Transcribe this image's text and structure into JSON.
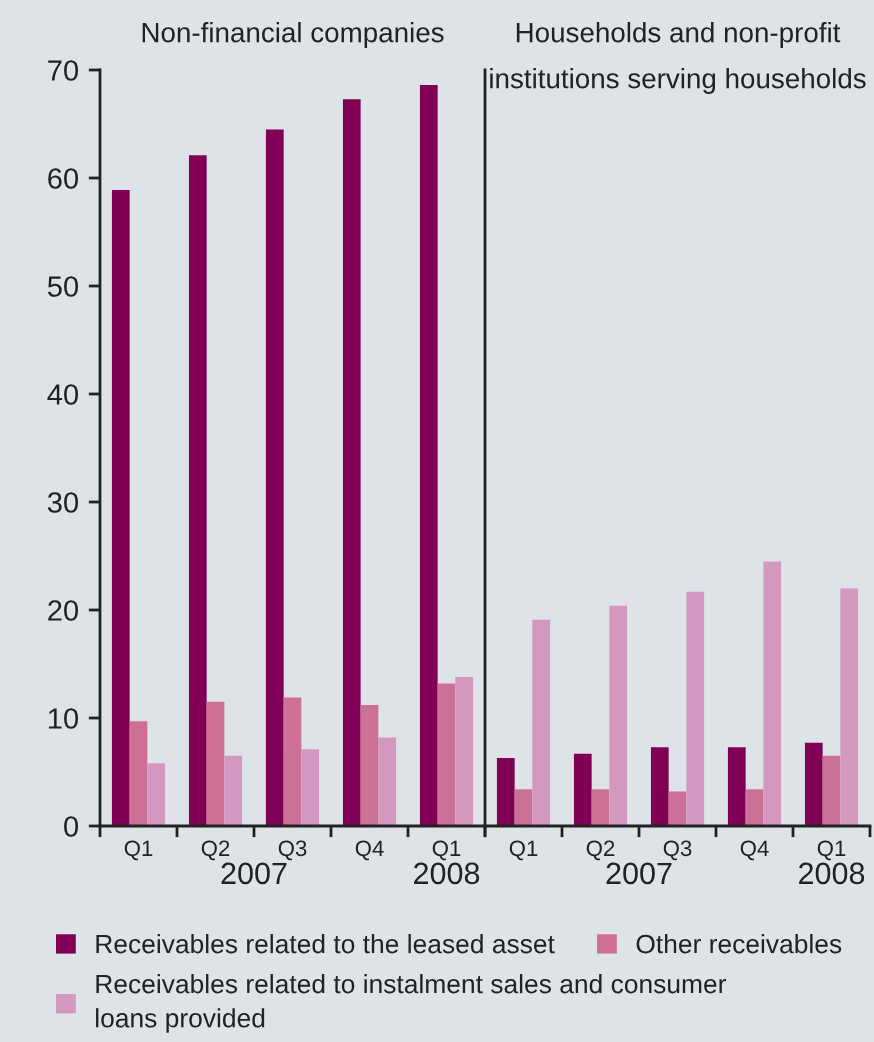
{
  "chart_data": [
    {
      "type": "bar",
      "title": "Non-financial companies",
      "categories": [
        "Q1",
        "Q2",
        "Q3",
        "Q4",
        "Q1"
      ],
      "annotations": [
        "2007",
        "2008"
      ],
      "series": [
        {
          "name": "Receivables related to the leased asset",
          "color": "#7f0055",
          "values": [
            58.9,
            62.1,
            64.5,
            67.3,
            68.6
          ]
        },
        {
          "name": "Other receivables",
          "color": "#cc7096",
          "values": [
            9.7,
            11.5,
            11.9,
            11.2,
            13.2
          ]
        },
        {
          "name": "Receivables related to instalment sales and consumer\nloans provided",
          "color": "#d398bf",
          "values": [
            5.8,
            6.5,
            7.1,
            8.2,
            13.8
          ]
        }
      ],
      "ylim": [
        0,
        70
      ],
      "yticks": [
        0,
        10,
        20,
        30,
        40,
        50,
        60,
        70
      ],
      "legend": "bottom"
    },
    {
      "type": "bar",
      "title": "Households and non-profit\ninstitutions serving households",
      "categories": [
        "Q1",
        "Q2",
        "Q3",
        "Q4",
        "Q1"
      ],
      "annotations": [
        "2007",
        "2008"
      ],
      "series": [
        {
          "color": "#7f0055",
          "values": [
            6.3,
            6.7,
            7.3,
            7.3,
            7.7
          ]
        },
        {
          "color": "#cc7096",
          "values": [
            3.4,
            3.4,
            3.2,
            3.4,
            6.5
          ]
        },
        {
          "color": "#d398bf",
          "values": [
            19.1,
            20.4,
            21.7,
            24.5,
            22.0
          ]
        }
      ],
      "ylim": [
        0,
        70
      ],
      "yticks": [
        0,
        10,
        20,
        30,
        40,
        50,
        60,
        70
      ],
      "tick_labels": "x"
    }
  ]
}
